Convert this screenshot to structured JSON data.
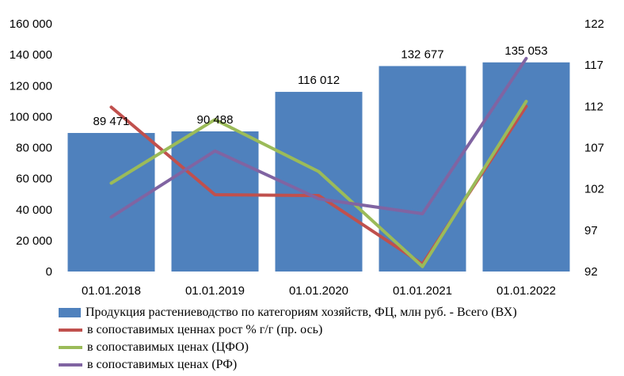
{
  "chart_data": {
    "type": "bar+line",
    "categories": [
      "01.01.2018",
      "01.01.2019",
      "01.01.2020",
      "01.01.2021",
      "01.01.2022"
    ],
    "bar_series": {
      "name": "Продукция растениеводство по категориям хозяйств, ФЦ, млн руб. - Всего (ВХ)",
      "values": [
        89471,
        90488,
        116012,
        132677,
        135053
      ],
      "labels": [
        "89 471",
        "90 488",
        "116 012",
        "132 677",
        "135 053"
      ],
      "color": "#4F81BD",
      "axis": "left"
    },
    "line_series": [
      {
        "name": "в сопоставимых ценнах рост % г/г (пр. ось)",
        "values": [
          111.9,
          101.3,
          101.2,
          92.9,
          112.0
        ],
        "color": "#C0504D",
        "axis": "right"
      },
      {
        "name": "в сопоставимых ценах (ЦФО)",
        "values": [
          102.7,
          110.4,
          104.1,
          92.6,
          112.6
        ],
        "color": "#9BBB59",
        "axis": "right"
      },
      {
        "name": "в сопоставимых ценах (РФ)",
        "values": [
          98.6,
          106.6,
          100.8,
          99.0,
          117.8
        ],
        "color": "#8064A2",
        "axis": "right"
      }
    ],
    "ylim_left": [
      0,
      160000
    ],
    "yticks_left": [
      "0",
      "20 000",
      "40 000",
      "60 000",
      "80 000",
      "100 000",
      "120 000",
      "140 000",
      "160 000"
    ],
    "ylim_right": [
      92,
      122
    ],
    "yticks_right": [
      "92",
      "97",
      "102",
      "107",
      "112",
      "117",
      "122"
    ],
    "grid": false,
    "legend_position": "bottom"
  }
}
